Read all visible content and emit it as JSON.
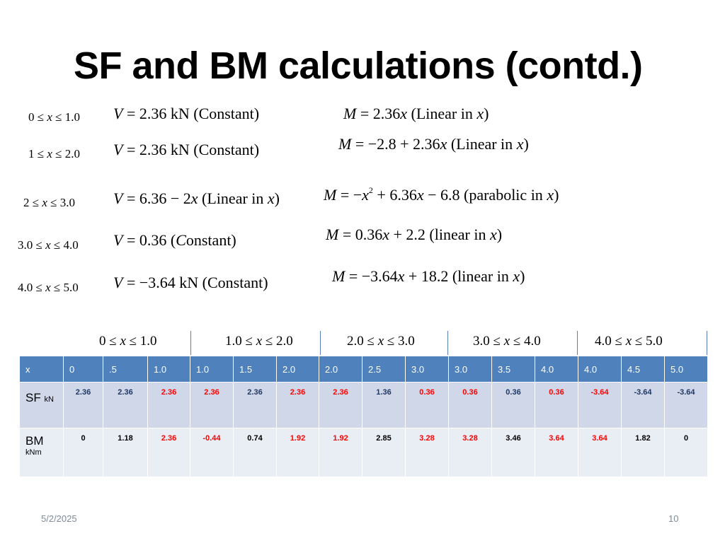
{
  "slide": {
    "title": "SF and BM calculations (contd.)",
    "date": "5/2/2025",
    "page_number": "10"
  },
  "segments": [
    {
      "range": [
        "0 ≤ ",
        "x",
        " ≤ 1.0"
      ],
      "shear": [
        "V",
        " = 2.36 kN   (Constant)"
      ],
      "moment": [
        "M",
        " = 2.36",
        "x",
        " (Linear in ",
        "x",
        ")"
      ]
    },
    {
      "range": [
        "1 ≤ ",
        "x",
        " ≤ 2.0"
      ],
      "shear": [
        "V",
        " = 2.36 kN   (Constant)"
      ],
      "moment": [
        "M",
        " = −2.8 + 2.36",
        "x",
        "  (Linear in ",
        "x",
        ")"
      ]
    },
    {
      "range": [
        "2 ≤ ",
        "x",
        " ≤ 3.0"
      ],
      "shear": [
        "V",
        " = 6.36 − 2",
        "x",
        " (Linear in ",
        "x",
        ")"
      ],
      "moment": [
        "M",
        " = −",
        "x",
        "2",
        " + 6.36",
        "x",
        " − 6.8  (parabolic in ",
        "x",
        ")"
      ]
    },
    {
      "range": [
        "3.0 ≤ ",
        "x",
        " ≤ 4.0"
      ],
      "shear": [
        "V",
        " = 0.36 (",
        "C",
        "onstant)"
      ],
      "moment": [
        "M",
        " = 0.36",
        "x",
        " + 2.2  (linear in ",
        "x",
        ")"
      ]
    },
    {
      "range": [
        "4.0 ≤ ",
        "x",
        " ≤ 5.0"
      ],
      "shear": [
        "V",
        " = −3.64 kN  (Constant)"
      ],
      "moment": [
        "M",
        " = −3.64",
        "x",
        " + 18.2  (linear in ",
        "x",
        ")"
      ]
    }
  ],
  "interval_headers": [
    [
      "0 ≤ ",
      "x",
      " ≤ 1.0"
    ],
    [
      "1.0 ≤ ",
      "x",
      " ≤ 2.0"
    ],
    [
      "2.0 ≤ ",
      "x",
      " ≤ 3.0"
    ],
    [
      "3.0 ≤ ",
      "x",
      " ≤ 4.0"
    ],
    [
      "4.0 ≤ ",
      "x",
      " ≤ 5.0"
    ]
  ],
  "table": {
    "x_label": "x",
    "x_values": [
      "0",
      ".5",
      "1.0",
      "1.0",
      "1.5",
      "2.0",
      "2.0",
      "2.5",
      "3.0",
      "3.0",
      "3.5",
      "4.0",
      "4.0",
      "4.5",
      "5.0"
    ],
    "sf_label": "SF",
    "sf_unit": "kN",
    "sf_values": [
      "2.36",
      "2.36",
      "2.36",
      "2.36",
      "2.36",
      "2.36",
      "2.36",
      "1.36",
      "0.36",
      "0.36",
      "0.36",
      "0.36",
      "-3.64",
      "-3.64",
      "-3.64"
    ],
    "bm_label": "BM",
    "bm_unit": "kNm",
    "bm_values": [
      "0",
      "1.18",
      "2.36",
      "-0.44",
      "0.74",
      "1.92",
      "1.92",
      "2.85",
      "3.28",
      "3.28",
      "3.46",
      "3.64",
      "3.64",
      "1.82",
      "0"
    ]
  },
  "colors": {
    "header_blue": "#4f81bd",
    "sf_row": "#cfd7e8",
    "bm_row": "#e9edf4",
    "highlight_red": "#ff0000",
    "navy_text": "#1f3864"
  }
}
